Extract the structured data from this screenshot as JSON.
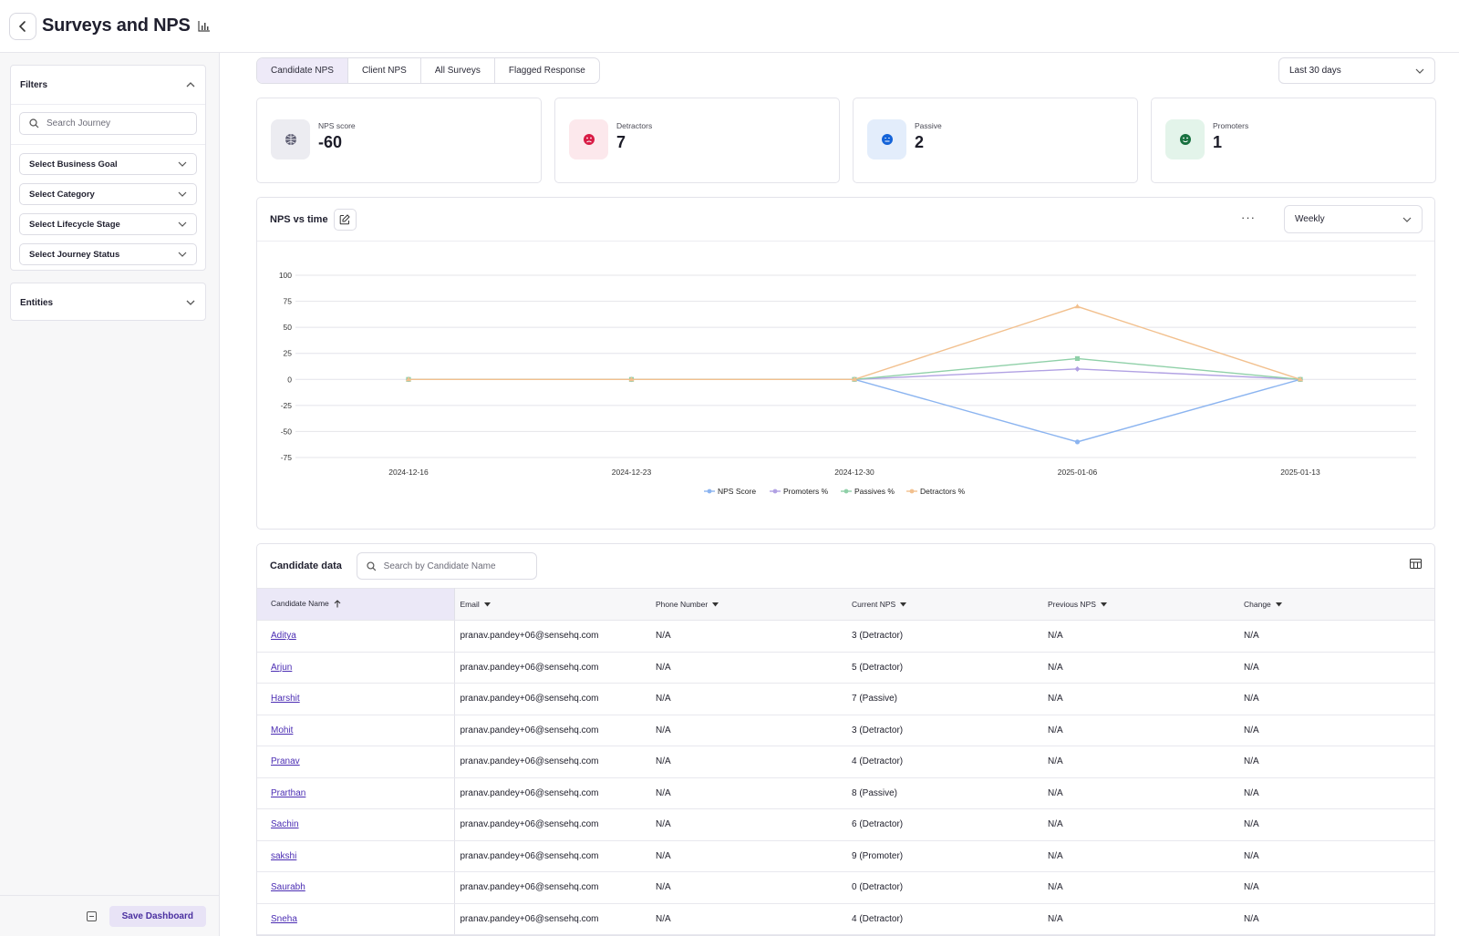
{
  "header": {
    "title": "Surveys and NPS"
  },
  "sidebar": {
    "filters_title": "Filters",
    "search_placeholder": "Search Journey",
    "selects": [
      "Select Business Goal",
      "Select Category",
      "Select Lifecycle Stage",
      "Select Journey Status"
    ],
    "entities_title": "Entities",
    "save_label": "Save Dashboard"
  },
  "tabs": [
    "Candidate NPS",
    "Client NPS",
    "All Surveys",
    "Flagged Response"
  ],
  "active_tab": 0,
  "range_select": "Last 30 days",
  "cards": [
    {
      "label": "NPS score",
      "value": "-60",
      "icon": "globe-icon",
      "bg": "#ececf1",
      "color": "#5b5b70"
    },
    {
      "label": "Detractors",
      "value": "7",
      "icon": "sad-face-icon",
      "bg": "#fce8ec",
      "color": "#d81b45"
    },
    {
      "label": "Passive",
      "value": "2",
      "icon": "neutral-face-icon",
      "bg": "#e3edfb",
      "color": "#1463d8"
    },
    {
      "label": "Promoters",
      "value": "1",
      "icon": "happy-face-icon",
      "bg": "#e3f4ea",
      "color": "#17703f"
    }
  ],
  "chart": {
    "title": "NPS vs time",
    "interval": "Weekly"
  },
  "chart_data": {
    "type": "line",
    "x": [
      "2024-12-16",
      "2024-12-23",
      "2024-12-30",
      "2025-01-06",
      "2025-01-13"
    ],
    "ylim": [
      -75,
      100
    ],
    "yticks": [
      100,
      75,
      50,
      25,
      0,
      -25,
      -50,
      -75
    ],
    "grid": true,
    "legend": "bottom",
    "series": [
      {
        "name": "NPS Score",
        "color": "#8bb4f0",
        "values": [
          0,
          0,
          0,
          -60,
          0
        ]
      },
      {
        "name": "Promoters %",
        "color": "#b1a1e3",
        "values": [
          0,
          0,
          0,
          10,
          0
        ]
      },
      {
        "name": "Passives %",
        "color": "#8fd0a8",
        "values": [
          0,
          0,
          0,
          20,
          0
        ]
      },
      {
        "name": "Detractors %",
        "color": "#f2c08e",
        "values": [
          0,
          0,
          0,
          70,
          0
        ]
      }
    ]
  },
  "table": {
    "title": "Candidate data",
    "search_placeholder": "Search by Candidate Name",
    "columns": [
      "Candidate Name",
      "Email",
      "Phone Number",
      "Current NPS",
      "Previous NPS",
      "Change"
    ],
    "rows": [
      [
        "Aditya",
        "pranav.pandey+06@sensehq.com",
        "N/A",
        "3 (Detractor)",
        "N/A",
        "N/A"
      ],
      [
        "Arjun",
        "pranav.pandey+06@sensehq.com",
        "N/A",
        "5 (Detractor)",
        "N/A",
        "N/A"
      ],
      [
        "Harshit",
        "pranav.pandey+06@sensehq.com",
        "N/A",
        "7 (Passive)",
        "N/A",
        "N/A"
      ],
      [
        "Mohit",
        "pranav.pandey+06@sensehq.com",
        "N/A",
        "3 (Detractor)",
        "N/A",
        "N/A"
      ],
      [
        "Pranav",
        "pranav.pandey+06@sensehq.com",
        "N/A",
        "4 (Detractor)",
        "N/A",
        "N/A"
      ],
      [
        "Prarthan",
        "pranav.pandey+06@sensehq.com",
        "N/A",
        "8 (Passive)",
        "N/A",
        "N/A"
      ],
      [
        "Sachin",
        "pranav.pandey+06@sensehq.com",
        "N/A",
        "6 (Detractor)",
        "N/A",
        "N/A"
      ],
      [
        "sakshi",
        "pranav.pandey+06@sensehq.com",
        "N/A",
        "9 (Promoter)",
        "N/A",
        "N/A"
      ],
      [
        "Saurabh",
        "pranav.pandey+06@sensehq.com",
        "N/A",
        "0 (Detractor)",
        "N/A",
        "N/A"
      ],
      [
        "Sneha",
        "pranav.pandey+06@sensehq.com",
        "N/A",
        "4 (Detractor)",
        "N/A",
        "N/A"
      ]
    ]
  }
}
